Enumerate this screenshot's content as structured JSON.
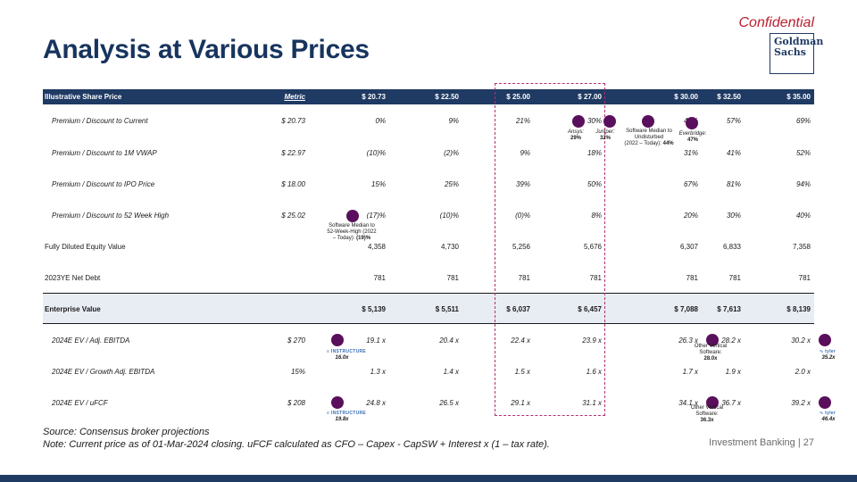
{
  "header": {
    "confidential": "Confidential",
    "logo_line1": "Goldman",
    "logo_line2": "Sachs",
    "title": "Analysis at Various Prices"
  },
  "table": {
    "header_label": "Illustrative Share Price",
    "header_metric": "Metric",
    "prices": [
      "$ 20.73",
      "$ 22.50",
      "$ 25.00",
      "$ 27.00",
      "$ 30.00",
      "$ 32.50",
      "$ 35.00"
    ],
    "rows": [
      {
        "label": "Premium / Discount to Current",
        "metric": "$ 20.73",
        "values": [
          "0%",
          "9%",
          "21%",
          "30%",
          "45%",
          "57%",
          "69%"
        ]
      },
      {
        "label": "Premium / Discount to 1M VWAP",
        "metric": "$ 22.97",
        "values": [
          "(10)%",
          "(2)%",
          "9%",
          "18%",
          "31%",
          "41%",
          "52%"
        ]
      },
      {
        "label": "Premium / Discount to IPO Price",
        "metric": "$ 18.00",
        "values": [
          "15%",
          "25%",
          "39%",
          "50%",
          "67%",
          "81%",
          "94%"
        ]
      },
      {
        "label": "Premium / Discount to 52 Week High",
        "metric": "$ 25.02",
        "values": [
          "(17)%",
          "(10)%",
          "(0)%",
          "8%",
          "20%",
          "30%",
          "40%"
        ]
      },
      {
        "label": "Fully Diluted Equity Value",
        "metric": "",
        "values": [
          "4,358",
          "4,730",
          "5,256",
          "5,676",
          "6,307",
          "6,833",
          "7,358"
        ]
      },
      {
        "label": "2023YE Net Debt",
        "metric": "",
        "values": [
          "781",
          "781",
          "781",
          "781",
          "781",
          "781",
          "781"
        ]
      },
      {
        "label": "Enterprise Value",
        "metric": "",
        "values": [
          "$ 5,139",
          "$ 5,511",
          "$ 6,037",
          "$ 6,457",
          "$ 7,088",
          "$ 7,613",
          "$ 8,139"
        ]
      },
      {
        "label": "2024E EV / Adj. EBITDA",
        "metric": "$ 270",
        "values": [
          "19.1 x",
          "20.4 x",
          "22.4 x",
          "23.9 x",
          "26.3 x",
          "28.2 x",
          "30.2 x"
        ]
      },
      {
        "label": "2024E EV / Growth Adj. EBITDA",
        "metric": "15%",
        "values": [
          "1.3 x",
          "1.4 x",
          "1.5 x",
          "1.6 x",
          "1.7 x",
          "1.9 x",
          "2.0 x"
        ]
      },
      {
        "label": "2024E EV / uFCF",
        "metric": "$ 208",
        "values": [
          "24.8 x",
          "26.5 x",
          "29.1 x",
          "31.1 x",
          "34.1 x",
          "36.7 x",
          "39.2 x"
        ]
      }
    ]
  },
  "annotations": {
    "ansys_name": "Ansys:",
    "ansys_val": "29%",
    "juniper_name": "Juniper:",
    "juniper_val": "32%",
    "sw_median_line1": "Software Median to",
    "sw_median_line2": "Undisturbed",
    "sw_median_line3": "(2022 – Today):",
    "sw_median_val": "44%",
    "everbridge_name": "Everbridge:",
    "everbridge_val": "47%",
    "sw52_line1": "Software Median to",
    "sw52_line2": "52-Week-High (2022",
    "sw52_line3": "– Today):",
    "sw52_val": "(19)%",
    "instructure_logo": "INSTRUCTURE",
    "instructure_ebitda": "16.0x",
    "instructure_ufcf": "19.8x",
    "other_vert_line1": "Other Vertical",
    "other_vert_line2": "Software:",
    "other_vert_ebitda": "28.0x",
    "other_vert_ufcf": "36.3x",
    "mark_logo": "∿ tyler",
    "mark_ebitda": "35.2x",
    "mark_ufcf": "46.4x"
  },
  "footer": {
    "source": "Source: Consensus broker projections",
    "note": "Note: Current price as of 01-Mar-2024 closing. uFCF calculated as CFO – Capex - CapSW + Interest x (1 – tax rate).",
    "right": "Investment Banking | 27"
  },
  "colors": {
    "navy": "#1f3a63",
    "title": "#17345e",
    "confidential": "#b8202f",
    "dot": "#5a0f5c",
    "dashed_box": "#b0306f"
  }
}
